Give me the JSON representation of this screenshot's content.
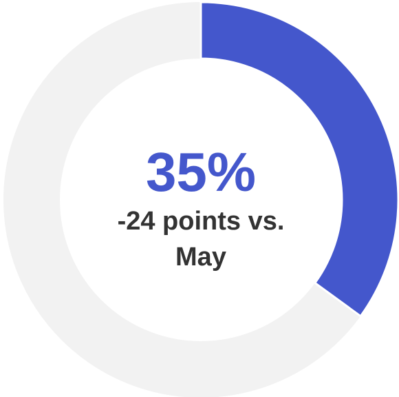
{
  "chart_data": {
    "type": "donut",
    "values": [
      35
    ],
    "value_labels": [
      "35%"
    ],
    "color": "#4457cc",
    "track_color": "#f2f2f2",
    "subtitle": "-24 points vs. May"
  }
}
